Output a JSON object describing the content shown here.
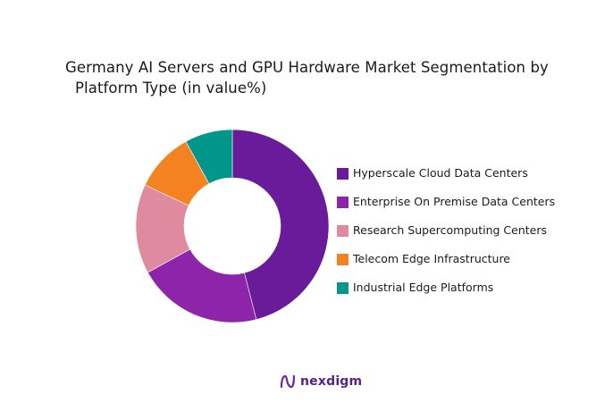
{
  "chart_data": {
    "type": "pie",
    "variant": "donut",
    "title_line1": "Germany AI Servers and GPU Hardware Market Segmentation by",
    "title_line2": "Platform Type (in value%)",
    "categories": [
      "Hyperscale Cloud Data Centers",
      "Enterprise On Premise Data Centers",
      "Research Supercomputing Centers",
      "Telecom Edge Infrastructure",
      "Industrial Edge Platforms"
    ],
    "values": [
      46,
      21,
      15,
      10,
      8
    ],
    "colors": [
      "#6a1b9a",
      "#8e24aa",
      "#e08aa0",
      "#f58220",
      "#00968a"
    ],
    "legend_position": "right"
  },
  "footer": {
    "brand": "nexdigm"
  }
}
